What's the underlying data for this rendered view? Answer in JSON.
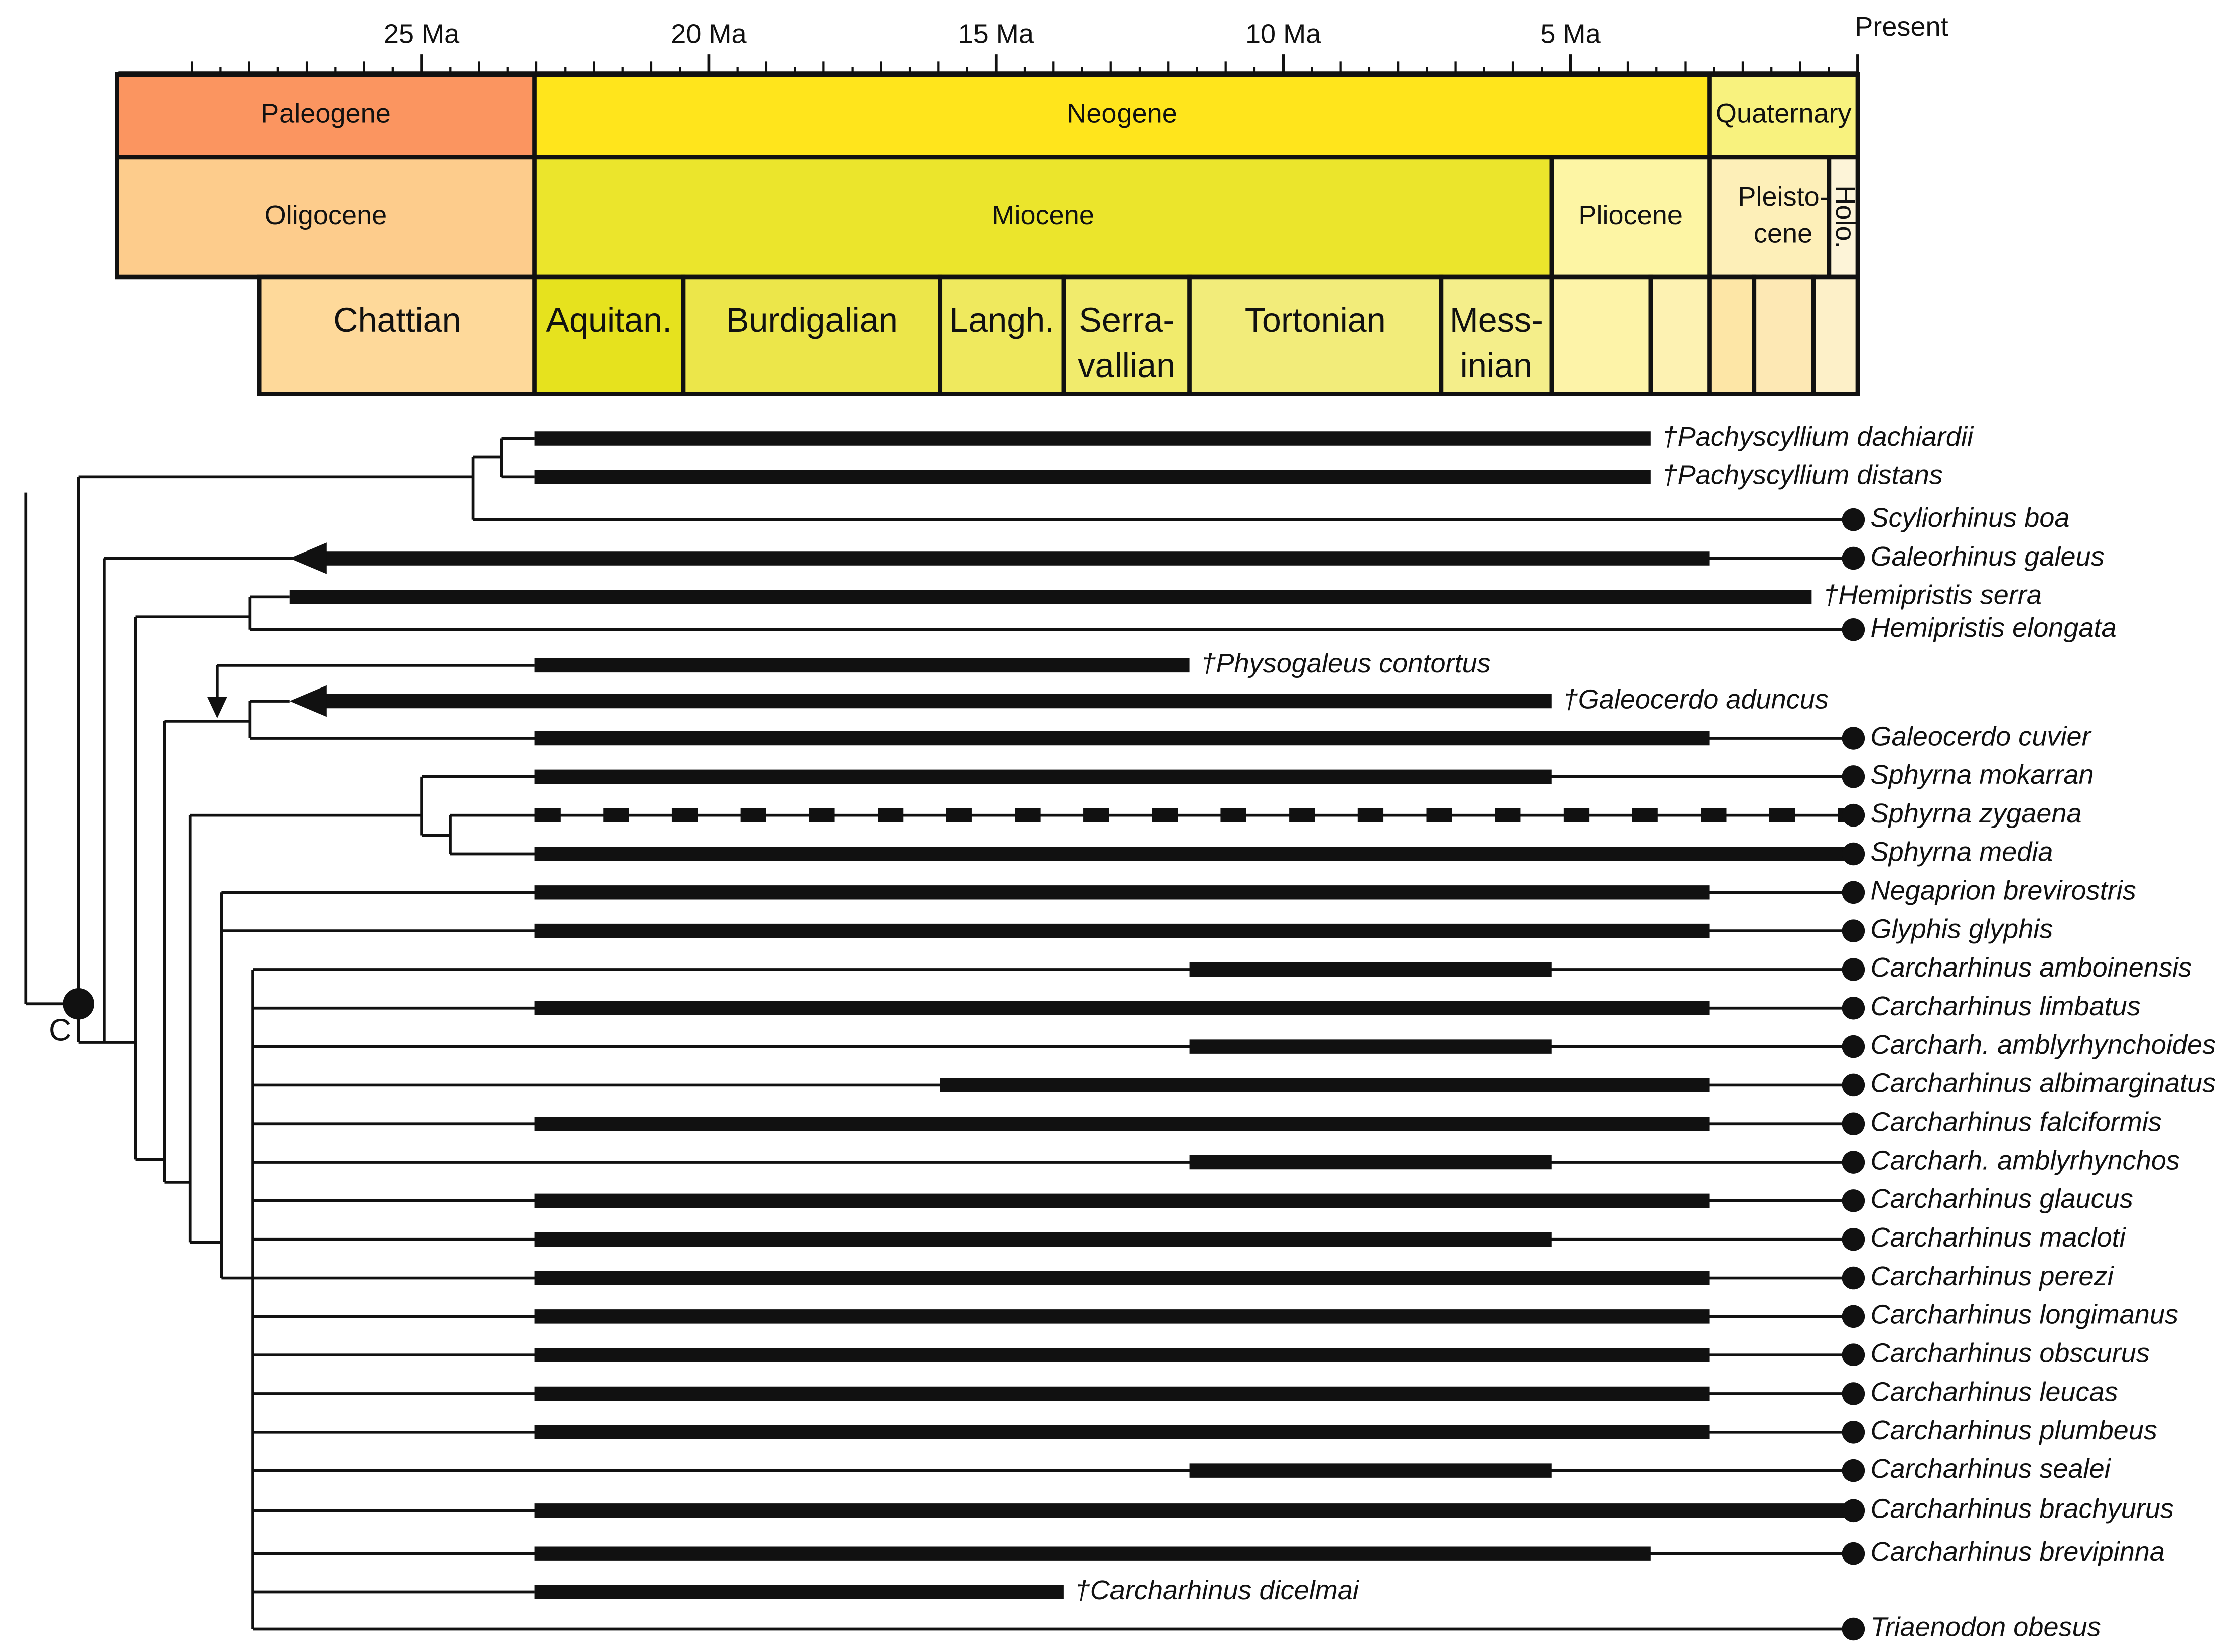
{
  "timescale": {
    "ticks": [
      {
        "value": 25,
        "label": "25 Ma"
      },
      {
        "value": 20,
        "label": "20 Ma"
      },
      {
        "value": 15,
        "label": "15 Ma"
      },
      {
        "value": 10,
        "label": "10 Ma"
      },
      {
        "value": 5,
        "label": "5 Ma"
      },
      {
        "value": 0,
        "label": "Present"
      }
    ]
  },
  "periods": [
    {
      "label": [
        "Paleogene"
      ],
      "start": 30.3,
      "end": 23.03,
      "color": "#fb9560"
    },
    {
      "label": [
        "Neogene"
      ],
      "start": 23.03,
      "end": 2.58,
      "color": "#ffe51c"
    },
    {
      "label": [
        "Quaternary"
      ],
      "start": 2.58,
      "end": 0,
      "color": "#f8f27e"
    }
  ],
  "epochs": [
    {
      "label": [
        "Oligocene"
      ],
      "start": 30.3,
      "end": 23.03,
      "color": "#fdcc8c"
    },
    {
      "label": [
        "Miocene"
      ],
      "start": 23.03,
      "end": 5.33,
      "color": "#ebe52c"
    },
    {
      "label": [
        "Pliocene"
      ],
      "start": 5.33,
      "end": 2.58,
      "color": "#fdf5a4"
    },
    {
      "label": [
        "Pleisto-",
        "cene"
      ],
      "start": 2.58,
      "end": 0.0117,
      "color": "#fdefb8"
    },
    {
      "label": [
        "Holo."
      ],
      "start": 0.0117,
      "end": 0,
      "color": "#fdf4d8"
    }
  ],
  "stages": [
    {
      "label": [
        "Chattian"
      ],
      "start": 27.82,
      "end": 23.03,
      "color": "#fed99a"
    },
    {
      "label": [
        "Aquitan."
      ],
      "start": 23.03,
      "end": 20.44,
      "color": "#e6e21e"
    },
    {
      "label": [
        "Burdigalian"
      ],
      "start": 20.44,
      "end": 15.97,
      "color": "#ece64a"
    },
    {
      "label": [
        "Langh."
      ],
      "start": 15.97,
      "end": 13.82,
      "color": "#efe95e"
    },
    {
      "label": [
        "Serra-",
        "vallian"
      ],
      "start": 13.82,
      "end": 11.63,
      "color": "#f1eb6c"
    },
    {
      "label": [
        "Tortonian"
      ],
      "start": 11.63,
      "end": 7.25,
      "color": "#f2ec7a"
    },
    {
      "label": [
        "Mess-",
        "inian"
      ],
      "start": 7.25,
      "end": 5.33,
      "color": "#f4ee8a"
    },
    {
      "label": null,
      "start": 5.33,
      "end": 3.6,
      "color": "#fdf3a8"
    },
    {
      "label": null,
      "start": 3.6,
      "end": 2.58,
      "color": "#fdf2b2"
    },
    {
      "label": null,
      "start": 2.58,
      "end": 1.8,
      "color": "#fde6a6"
    },
    {
      "label": null,
      "start": 1.8,
      "end": 0.77,
      "color": "#fde8b4"
    },
    {
      "label": null,
      "start": 0.77,
      "end": 0,
      "color": "#fdf0c8"
    }
  ],
  "node_label": "C",
  "taxa": [
    {
      "name": "†Pachyscyllium dachiardii",
      "extinct": true,
      "range": [
        23.03,
        3.6
      ]
    },
    {
      "name": "†Pachyscyllium distans",
      "extinct": true,
      "range": [
        23.03,
        3.6
      ]
    },
    {
      "name": "Scyliorhinus boa",
      "extinct": false
    },
    {
      "name": "Galeorhinus galeus",
      "extinct": false,
      "range": [
        27.3,
        2.58
      ],
      "arrow": true
    },
    {
      "name": "†Hemipristis serra",
      "extinct": true,
      "range": [
        27.3,
        0.8
      ]
    },
    {
      "name": "Hemipristis elongata",
      "extinct": false
    },
    {
      "name": "†Physogaleus contortus",
      "extinct": true,
      "range": [
        23.03,
        11.63
      ]
    },
    {
      "name": "†Galeocerdo aduncus",
      "extinct": true,
      "range": [
        27.3,
        5.33
      ],
      "arrow": true
    },
    {
      "name": "Galeocerdo cuvier",
      "extinct": false,
      "range": [
        23.03,
        2.58
      ]
    },
    {
      "name": "Sphyrna mokarran",
      "extinct": false,
      "range": [
        23.03,
        5.33
      ]
    },
    {
      "name": "Sphyrna zygaena",
      "extinct": false,
      "range": [
        23.03,
        0
      ],
      "dashed": true
    },
    {
      "name": "Sphyrna media",
      "extinct": false,
      "range": [
        23.03,
        0
      ]
    },
    {
      "name": "Negaprion brevirostris",
      "extinct": false,
      "range": [
        23.03,
        2.58
      ]
    },
    {
      "name": "Glyphis glyphis",
      "extinct": false,
      "range": [
        23.03,
        2.58
      ]
    },
    {
      "name": "Carcharhinus amboinensis",
      "extinct": false,
      "range": [
        11.63,
        5.33
      ]
    },
    {
      "name": "Carcharhinus limbatus",
      "extinct": false,
      "range": [
        23.03,
        2.58
      ]
    },
    {
      "name": "Carcharh. amblyrhynchoides",
      "extinct": false,
      "range": [
        11.63,
        5.33
      ]
    },
    {
      "name": "Carcharhinus albimarginatus",
      "extinct": false,
      "range": [
        15.97,
        2.58
      ]
    },
    {
      "name": "Carcharhinus falciformis",
      "extinct": false,
      "range": [
        23.03,
        2.58
      ]
    },
    {
      "name": "Carcharh. amblyrhynchos",
      "extinct": false,
      "range": [
        11.63,
        5.33
      ]
    },
    {
      "name": "Carcharhinus glaucus",
      "extinct": false,
      "range": [
        23.03,
        2.58
      ]
    },
    {
      "name": "Carcharhinus macloti",
      "extinct": false,
      "range": [
        23.03,
        5.33
      ]
    },
    {
      "name": "Carcharhinus perezi",
      "extinct": false,
      "range": [
        23.03,
        2.58
      ]
    },
    {
      "name": "Carcharhinus longimanus",
      "extinct": false,
      "range": [
        23.03,
        2.58
      ]
    },
    {
      "name": "Carcharhinus obscurus",
      "extinct": false,
      "range": [
        23.03,
        2.58
      ]
    },
    {
      "name": "Carcharhinus leucas",
      "extinct": false,
      "range": [
        23.03,
        2.58
      ]
    },
    {
      "name": "Carcharhinus plumbeus",
      "extinct": false,
      "range": [
        23.03,
        2.58
      ]
    },
    {
      "name": "Carcharhinus sealei",
      "extinct": false,
      "range": [
        11.63,
        5.33
      ]
    },
    {
      "name": "Carcharhinus brachyurus",
      "extinct": false,
      "range": [
        23.03,
        0
      ]
    },
    {
      "name": "Carcharhinus brevipinna",
      "extinct": false,
      "range": [
        23.03,
        3.6
      ]
    },
    {
      "name": "†Carcharhinus dicelmai",
      "extinct": true,
      "range": [
        23.03,
        13.82
      ]
    },
    {
      "name": "Triaenodon obesus",
      "extinct": false
    }
  ]
}
